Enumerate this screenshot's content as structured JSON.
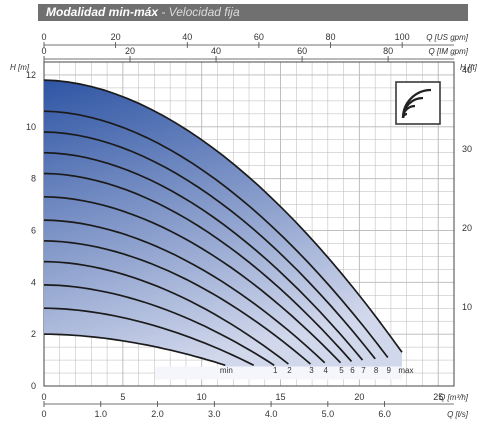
{
  "header": {
    "title": "Modalidad min-máx",
    "subtitle": " - Velocidad fija"
  },
  "colors": {
    "header_bg": "#707070",
    "fill_top": "#2f55a4",
    "fill_bottom": "#d2d8ec",
    "curve": "#1b1b1b",
    "grid": "#b8b8b8"
  },
  "icon": {
    "name": "pump-speed-waves-icon"
  },
  "chart_data": {
    "type": "line",
    "title": "Modalidad min-máx - Velocidad fija",
    "y_left": {
      "label": "H [m]",
      "range": [
        0,
        12.5
      ],
      "ticks": [
        0,
        2,
        4,
        6,
        8,
        10,
        12
      ]
    },
    "y_right": {
      "label": "H [ft]",
      "range": [
        0,
        41
      ],
      "ticks": [
        10,
        20,
        30,
        40
      ]
    },
    "x_top_us": {
      "label": "Q [US gpm]",
      "range": [
        0,
        114
      ],
      "ticks": [
        0,
        20,
        40,
        60,
        80,
        100
      ]
    },
    "x_top_im": {
      "label": "Q [IM gpm]",
      "range": [
        0,
        95
      ],
      "ticks": [
        0,
        20,
        40,
        60,
        80
      ]
    },
    "x_bottom_m3h": {
      "label": "Q [m³/h]",
      "range": [
        0,
        26
      ],
      "ticks": [
        0,
        5,
        10,
        15,
        20,
        25
      ]
    },
    "x_bottom_ls": {
      "label": "Q [l/s]",
      "range": [
        0,
        7.2
      ],
      "ticks": [
        "0",
        "1.0",
        "2.0",
        "3.0",
        "4.0",
        "5.0",
        "6.0"
      ]
    },
    "grid": true,
    "series": [
      {
        "name": "max",
        "label": "max",
        "shutoff_head": 11.8,
        "end_flow": 22.7,
        "end_head": 1.3
      },
      {
        "name": "9",
        "label": "9",
        "shutoff_head": 10.6,
        "end_flow": 21.8,
        "end_head": 1.1
      },
      {
        "name": "8",
        "label": "8",
        "shutoff_head": 9.8,
        "end_flow": 21.0,
        "end_head": 1.05
      },
      {
        "name": "7",
        "label": "7",
        "shutoff_head": 9.0,
        "end_flow": 20.2,
        "end_head": 1.0
      },
      {
        "name": "6",
        "label": "6",
        "shutoff_head": 8.2,
        "end_flow": 19.5,
        "end_head": 0.95
      },
      {
        "name": "5",
        "label": "5",
        "shutoff_head": 7.3,
        "end_flow": 18.8,
        "end_head": 0.9
      },
      {
        "name": "4",
        "label": "4",
        "shutoff_head": 6.4,
        "end_flow": 17.8,
        "end_head": 0.9
      },
      {
        "name": "3",
        "label": "3",
        "shutoff_head": 5.6,
        "end_flow": 16.9,
        "end_head": 0.85
      },
      {
        "name": "2",
        "label": "2",
        "shutoff_head": 4.8,
        "end_flow": 15.5,
        "end_head": 0.85
      },
      {
        "name": "1",
        "label": "1",
        "shutoff_head": 3.9,
        "end_flow": 14.6,
        "end_head": 0.8
      },
      {
        "name": "min2",
        "label": "",
        "shutoff_head": 3.0,
        "end_flow": 13.3,
        "end_head": 0.8
      },
      {
        "name": "min",
        "label": "min",
        "shutoff_head": 2.0,
        "end_flow": 11.5,
        "end_head": 0.8
      }
    ],
    "legend": "none"
  }
}
